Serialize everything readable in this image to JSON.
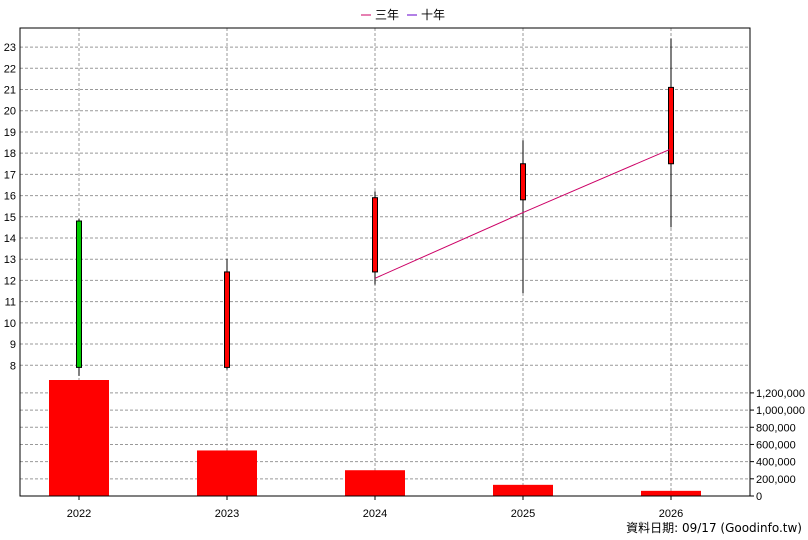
{
  "legend": [
    {
      "label": "三年",
      "color": "#CC0066"
    },
    {
      "label": "十年",
      "color": "#6600CC"
    }
  ],
  "footer": {
    "text": "資料日期: 09/17  (Goodinfo.tw)"
  },
  "colors": {
    "up": "#FF0000",
    "down": "#00CC00",
    "volume": "#FF0000",
    "grid": "#999999"
  },
  "chart_data": {
    "type": "candlestick",
    "categories": [
      "2022",
      "2023",
      "2024",
      "2025",
      "2026"
    ],
    "candles": [
      {
        "year": "2022",
        "open": 14.8,
        "high": 14.9,
        "low": 7.5,
        "close": 7.9,
        "direction": "down"
      },
      {
        "year": "2023",
        "open": 7.9,
        "high": 13.0,
        "low": 7.8,
        "close": 12.4,
        "direction": "up"
      },
      {
        "year": "2024",
        "open": 12.4,
        "high": 16.2,
        "low": 11.8,
        "close": 15.9,
        "direction": "up"
      },
      {
        "year": "2025",
        "open": 15.8,
        "high": 18.6,
        "low": 11.4,
        "close": 17.5,
        "direction": "up"
      },
      {
        "year": "2026",
        "open": 17.5,
        "high": 23.4,
        "low": 14.5,
        "close": 21.1,
        "direction": "up"
      }
    ],
    "moving_average_3y": {
      "name": "三年",
      "x": [
        "2024",
        "2025",
        "2026"
      ],
      "values": [
        12.1,
        15.2,
        18.2
      ]
    },
    "volume": {
      "categories": [
        "2022",
        "2023",
        "2024",
        "2025",
        "2026"
      ],
      "values": [
        1350000,
        530000,
        300000,
        130000,
        60000
      ]
    },
    "price_axis": {
      "ticks": [
        8,
        9,
        10,
        11,
        12,
        13,
        14,
        15,
        16,
        17,
        18,
        19,
        20,
        21,
        22,
        23
      ],
      "range": [
        7.4,
        23.9
      ]
    },
    "volume_axis": {
      "ticks": [
        "0",
        "200,000",
        "400,000",
        "600,000",
        "800,000",
        "1,000,000",
        "1,200,000"
      ],
      "values": [
        0,
        200000,
        400000,
        600000,
        800000,
        1000000,
        1200000
      ],
      "max": 1350000
    },
    "grid": true,
    "legend_position": "top-center"
  }
}
